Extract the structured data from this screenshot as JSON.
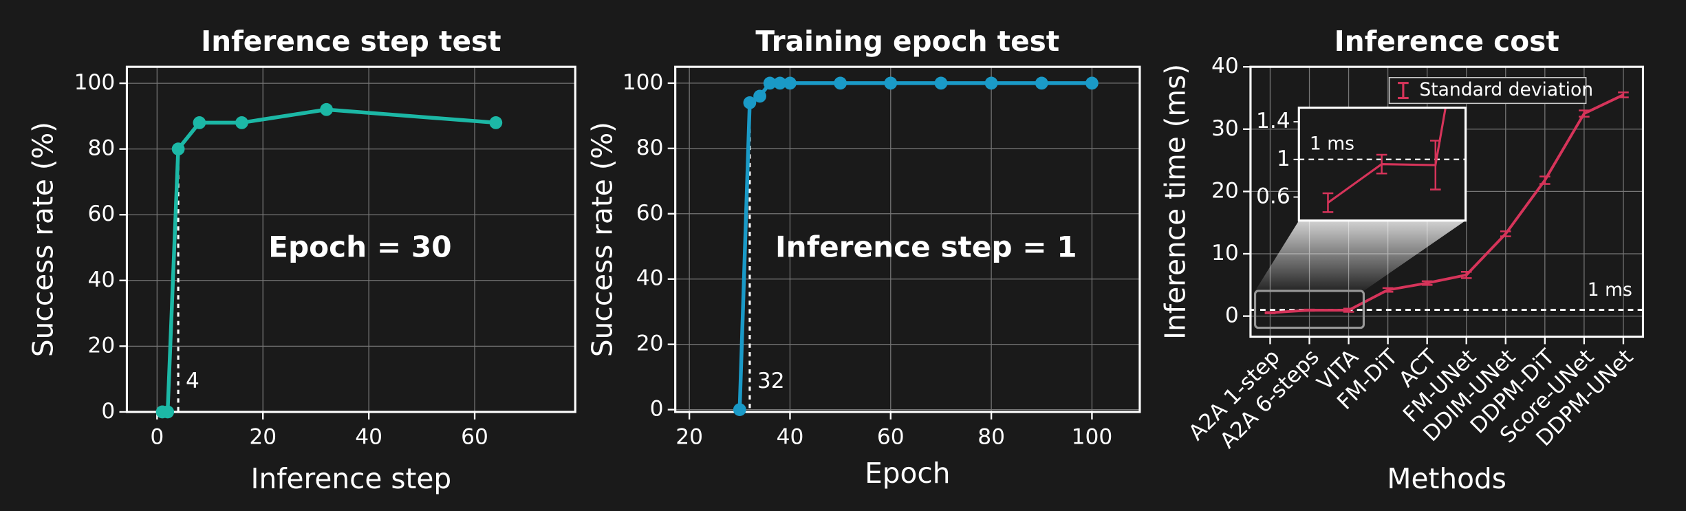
{
  "chart_data": [
    {
      "type": "line",
      "title": "Inference step test",
      "x_label": "Inference step",
      "y_label": "Success rate (%)",
      "x": [
        1,
        2,
        4,
        8,
        16,
        32,
        64
      ],
      "values": [
        0,
        0,
        80,
        88,
        88,
        92,
        88
      ],
      "color": "#1cb8a6",
      "xlim": [
        -5.7,
        79
      ],
      "xticks": [
        0,
        20,
        40,
        60
      ],
      "ylim": [
        0,
        105
      ],
      "yticks": [
        0,
        20,
        40,
        60,
        80,
        100
      ],
      "grid": true,
      "annotation": "Epoch = 30",
      "vline": 4
    },
    {
      "type": "line",
      "title": "Training epoch test",
      "x_label": "Epoch",
      "y_label": "Success rate (%)",
      "x": [
        30,
        32,
        34,
        36,
        38,
        40,
        50,
        60,
        70,
        80,
        90,
        100
      ],
      "values": [
        0,
        94,
        96,
        100,
        100,
        100,
        100,
        100,
        100,
        100,
        100,
        100
      ],
      "color": "#1a9ac7",
      "xlim": [
        17.2,
        109.5
      ],
      "xticks": [
        20,
        40,
        60,
        80,
        100
      ],
      "ylim": [
        -0.7,
        105
      ],
      "yticks": [
        0,
        20,
        40,
        60,
        80,
        100
      ],
      "grid": true,
      "annotation": "Inference step = 1",
      "vline": 32
    },
    {
      "type": "errorline",
      "title": "Inference cost",
      "x_label": "Methods",
      "y_label": "Inference time (ms)",
      "categories": [
        "A2A 1-step",
        "A2A 6-steps",
        "VITA",
        "FM-DiT",
        "ACT",
        "FM-UNet",
        "DDIM-UNet",
        "DDPM-DiT",
        "Score-UNet",
        "DDPM-UNet"
      ],
      "values": [
        0.54,
        0.95,
        0.94,
        4.2,
        5.3,
        6.6,
        13.2,
        21.8,
        32.5,
        35.5
      ],
      "errors": [
        0.1,
        0.1,
        0.26,
        0.3,
        0.3,
        0.5,
        0.4,
        0.6,
        0.5,
        0.4
      ],
      "error_name": "Standard deviation",
      "color": "#d6345a",
      "ylim": [
        -3.3,
        40
      ],
      "yticks": [
        0,
        10,
        20,
        30,
        40
      ],
      "grid": true,
      "hline": {
        "value": 1,
        "label": "1 ms"
      },
      "inset": {
        "ylim": [
          0.35,
          1.55
        ],
        "yticks": [
          0.6,
          1,
          1.4
        ]
      }
    }
  ]
}
